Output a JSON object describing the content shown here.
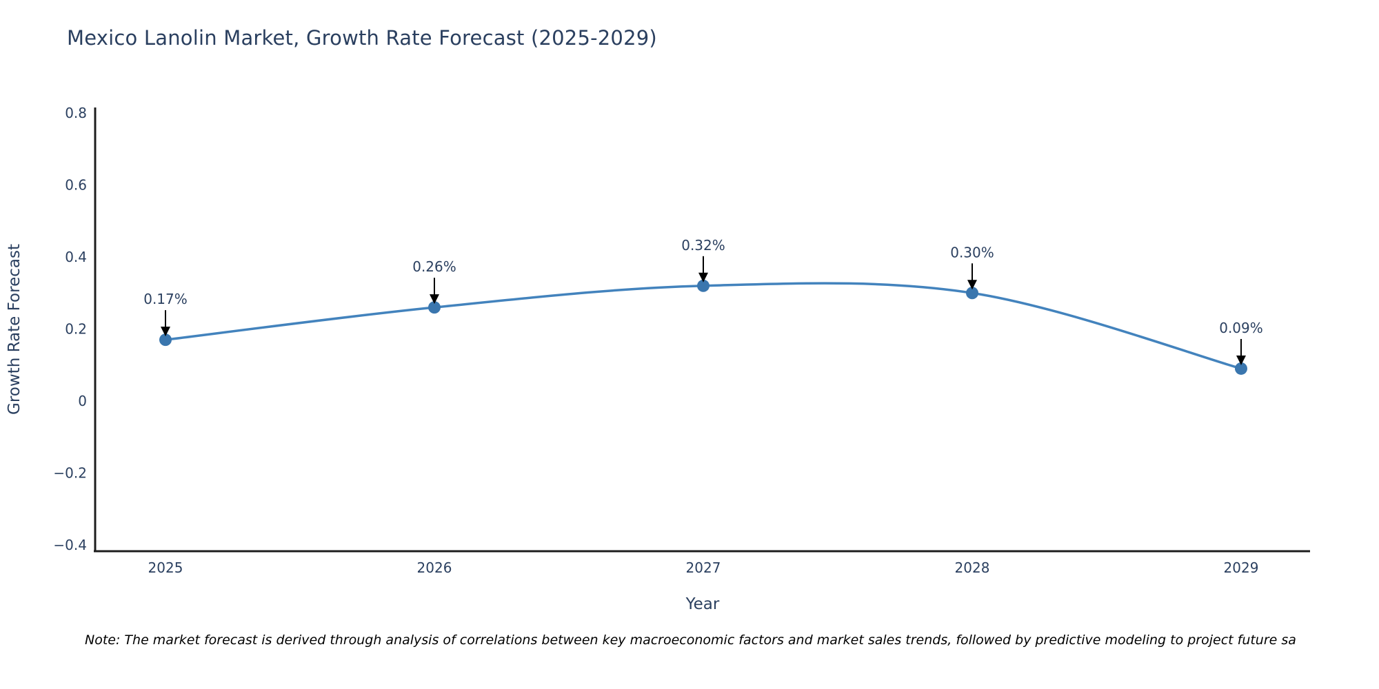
{
  "title": "Mexico Lanolin Market, Growth Rate Forecast (2025-2029)",
  "note": "Note: The market forecast is derived through analysis of correlations between key macroeconomic factors and market sales trends, followed by predictive modeling to project future sa",
  "chart_data": {
    "type": "line",
    "line_shape": "spline",
    "x": [
      "2025",
      "2026",
      "2027",
      "2028",
      "2029"
    ],
    "values": [
      0.17,
      0.26,
      0.32,
      0.3,
      0.09
    ],
    "point_labels": [
      "0.17%",
      "0.26%",
      "0.32%",
      "0.30%",
      "0.09%"
    ],
    "title": "Mexico Lanolin Market, Growth Rate Forecast (2025-2029)",
    "xlabel": "Year",
    "ylabel": "Growth Rate Forecast",
    "ylim": [
      -0.4,
      0.8
    ],
    "yticks": [
      0.8,
      0.6,
      0.4,
      0.2,
      0,
      -0.2,
      -0.4
    ],
    "ytick_labels": [
      "0.8",
      "0.6",
      "0.4",
      "0.2",
      "0",
      "−0.2",
      "−0.4"
    ],
    "grid": false,
    "legend": "none",
    "markers": true,
    "colors": {
      "line": "#4383bd",
      "marker": "#3a76ae",
      "axis": "#1d1d1d",
      "text": "#2a3f5f",
      "arrow": "#000000",
      "background": "#ffffff"
    }
  }
}
